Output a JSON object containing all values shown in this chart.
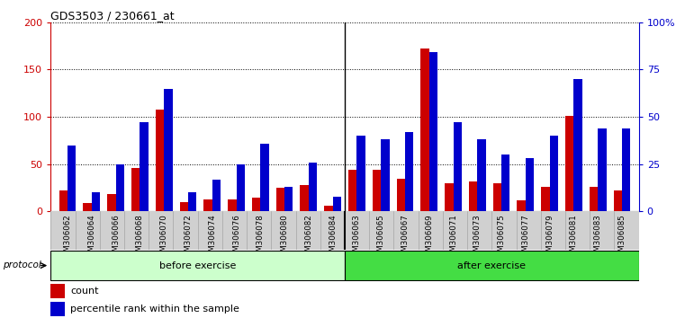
{
  "title": "GDS3503 / 230661_at",
  "categories": [
    "GSM306062",
    "GSM306064",
    "GSM306066",
    "GSM306068",
    "GSM306070",
    "GSM306072",
    "GSM306074",
    "GSM306076",
    "GSM306078",
    "GSM306080",
    "GSM306082",
    "GSM306084",
    "GSM306063",
    "GSM306065",
    "GSM306067",
    "GSM306069",
    "GSM306071",
    "GSM306073",
    "GSM306075",
    "GSM306077",
    "GSM306079",
    "GSM306081",
    "GSM306083",
    "GSM306085"
  ],
  "count_values": [
    22,
    9,
    18,
    46,
    108,
    10,
    13,
    13,
    15,
    25,
    28,
    6,
    44,
    44,
    35,
    172,
    30,
    32,
    30,
    12,
    26,
    101,
    26,
    22
  ],
  "percentile_values": [
    35,
    10,
    25,
    47,
    65,
    10,
    17,
    25,
    36,
    13,
    26,
    8,
    40,
    38,
    42,
    84,
    47,
    38,
    30,
    28,
    40,
    70,
    44,
    44
  ],
  "before_exercise_count": 12,
  "after_exercise_count": 12,
  "left_ylim": [
    0,
    200
  ],
  "right_ylim": [
    0,
    100
  ],
  "left_yticks": [
    0,
    50,
    100,
    150,
    200
  ],
  "right_yticks": [
    0,
    25,
    50,
    75,
    100
  ],
  "right_yticklabels": [
    "0",
    "25",
    "50",
    "75",
    "100%"
  ],
  "count_color": "#cc0000",
  "percentile_color": "#0000cc",
  "bg_color": "#d0d0d0",
  "before_color": "#ccffcc",
  "after_color": "#44dd44",
  "grid_color": "#000000",
  "bar_width": 0.35,
  "protocol_label": "protocol",
  "before_label": "before exercise",
  "after_label": "after exercise",
  "legend_count_label": "count",
  "legend_percentile_label": "percentile rank within the sample"
}
